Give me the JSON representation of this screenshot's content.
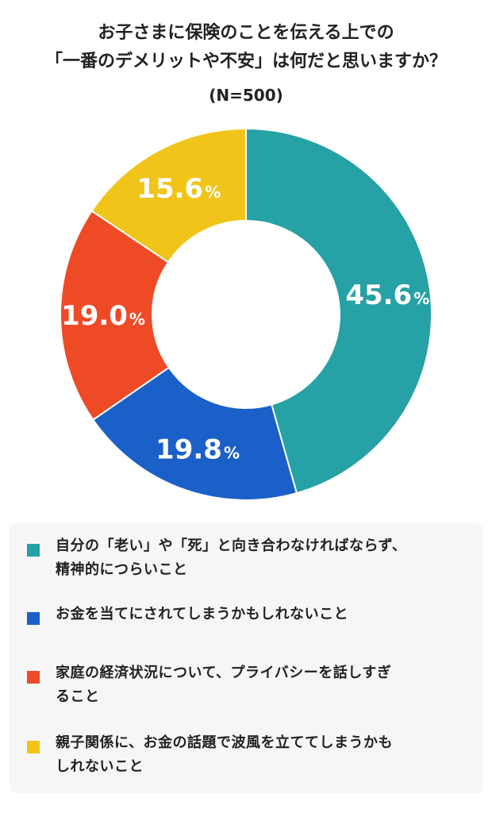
{
  "title": {
    "line1": "お子さまに保険のことを伝える上での",
    "line2": "「一番のデメリットや不安」は何だと思いますか？",
    "subtitle": "(N=500)"
  },
  "chart_data": {
    "type": "pie",
    "donut": true,
    "title": "お子さまに保険のことを伝える上での「一番のデメリットや不安」は何だと思いますか？",
    "subtitle": "(N=500)",
    "unit": "%",
    "series": [
      {
        "name": "自分の「老い」や「死」と向き合わなければならず、精神的につらいこと",
        "value": 45.6,
        "label": "45.6",
        "color": "#26a1a5"
      },
      {
        "name": "お金を当てにされてしまうかもしれないこと",
        "value": 19.8,
        "label": "19.8",
        "color": "#1b5fc8"
      },
      {
        "name": "家庭の経済状況について、プライバシーを話しすぎること",
        "value": 19.0,
        "label": "19.0",
        "color": "#ef4a26"
      },
      {
        "name": "親子関係に、お金の話題で波風を立ててしまうかもしれないこと",
        "value": 15.6,
        "label": "15.6",
        "color": "#f0c419"
      }
    ],
    "legend_position": "bottom"
  },
  "legend": [
    {
      "line1": "自分の「老い」や「死」と向き合わなければならず、",
      "line2": "精神的につらいこと"
    },
    {
      "line1": "お金を当てにされてしまうかもしれないこと",
      "line2": ""
    },
    {
      "line1": "家庭の経済状況について、プライバシーを話しすぎ",
      "line2": "ること"
    },
    {
      "line1": "親子関係に、お金の話題で波風を立ててしまうかも",
      "line2": "しれないこと"
    }
  ]
}
